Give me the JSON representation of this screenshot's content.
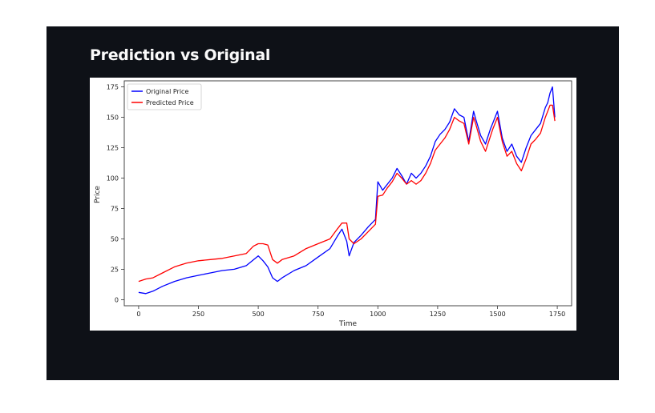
{
  "page": {
    "title": "Prediction vs Original"
  },
  "chart_data": {
    "type": "line",
    "title": "",
    "xlabel": "Time",
    "ylabel": "Price",
    "xlim": [
      -60,
      1810
    ],
    "ylim": [
      -5,
      180
    ],
    "xticks": [
      0,
      250,
      500,
      750,
      1000,
      1250,
      1500,
      1750
    ],
    "yticks": [
      0,
      25,
      50,
      75,
      100,
      125,
      150,
      175
    ],
    "legend": {
      "position": "top-left"
    },
    "grid": false,
    "series": [
      {
        "name": "Original Price",
        "color": "#0000ff",
        "x": [
          0,
          30,
          60,
          100,
          150,
          200,
          250,
          300,
          350,
          400,
          450,
          500,
          520,
          540,
          560,
          580,
          600,
          650,
          700,
          750,
          800,
          830,
          850,
          870,
          880,
          900,
          930,
          960,
          990,
          1000,
          1020,
          1040,
          1060,
          1080,
          1100,
          1120,
          1140,
          1160,
          1180,
          1200,
          1220,
          1240,
          1260,
          1280,
          1300,
          1320,
          1340,
          1360,
          1380,
          1400,
          1410,
          1430,
          1450,
          1470,
          1480,
          1500,
          1520,
          1540,
          1560,
          1580,
          1600,
          1620,
          1640,
          1660,
          1680,
          1700,
          1710,
          1720,
          1730,
          1740
        ],
        "values": [
          6,
          5,
          7,
          11,
          15,
          18,
          20,
          22,
          24,
          25,
          28,
          36,
          32,
          27,
          18,
          15,
          18,
          24,
          28,
          35,
          42,
          52,
          58,
          48,
          36,
          47,
          53,
          60,
          66,
          97,
          90,
          95,
          100,
          108,
          102,
          95,
          104,
          100,
          104,
          110,
          118,
          130,
          136,
          140,
          146,
          157,
          152,
          150,
          130,
          155,
          148,
          135,
          128,
          140,
          145,
          155,
          133,
          122,
          128,
          118,
          113,
          125,
          135,
          140,
          145,
          158,
          162,
          170,
          175,
          150
        ]
      },
      {
        "name": "Predicted Price",
        "color": "#ff0000",
        "x": [
          0,
          30,
          60,
          100,
          150,
          200,
          250,
          300,
          350,
          400,
          450,
          480,
          500,
          520,
          540,
          560,
          580,
          600,
          650,
          700,
          750,
          800,
          830,
          850,
          870,
          880,
          900,
          930,
          960,
          990,
          1000,
          1020,
          1040,
          1060,
          1080,
          1100,
          1120,
          1140,
          1160,
          1180,
          1200,
          1220,
          1240,
          1260,
          1280,
          1300,
          1320,
          1340,
          1360,
          1380,
          1400,
          1410,
          1430,
          1450,
          1470,
          1480,
          1500,
          1520,
          1540,
          1560,
          1580,
          1600,
          1620,
          1640,
          1660,
          1680,
          1700,
          1710,
          1720,
          1730,
          1740
        ],
        "values": [
          15,
          17,
          18,
          22,
          27,
          30,
          32,
          33,
          34,
          36,
          38,
          44,
          46,
          46,
          45,
          33,
          30,
          33,
          36,
          42,
          46,
          50,
          58,
          63,
          63,
          50,
          46,
          50,
          56,
          62,
          85,
          86,
          92,
          97,
          104,
          100,
          95,
          98,
          95,
          98,
          104,
          112,
          123,
          128,
          133,
          140,
          150,
          147,
          145,
          128,
          150,
          144,
          130,
          122,
          134,
          140,
          150,
          130,
          118,
          122,
          112,
          106,
          116,
          128,
          132,
          137,
          150,
          155,
          160,
          160,
          147
        ]
      }
    ]
  }
}
